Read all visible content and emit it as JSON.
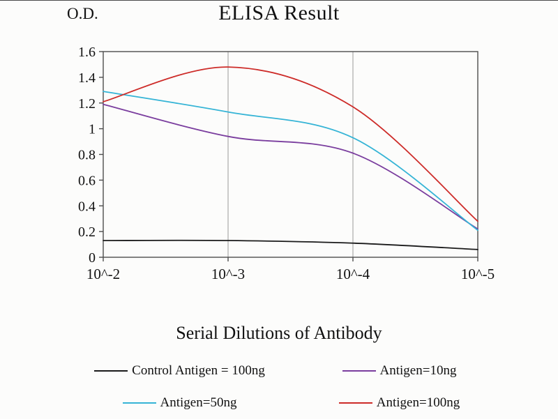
{
  "title": "ELISA Result",
  "chart_data": {
    "type": "line",
    "title": "ELISA Result",
    "ylabel": "O.D.",
    "xlabel": "Serial Dilutions of Antibody",
    "categories": [
      "10^-2",
      "10^-3",
      "10^-4",
      "10^-5"
    ],
    "y_ticks": [
      0,
      0.2,
      0.4,
      0.6,
      0.8,
      1,
      1.2,
      1.4,
      1.6
    ],
    "ylim": [
      0,
      1.6
    ],
    "grid": "vertical-only",
    "legend_position": "bottom",
    "line_style": "smooth",
    "series": [
      {
        "name": "Control Antigen = 100ng",
        "color": "#1a1a1a",
        "values": [
          0.13,
          0.13,
          0.11,
          0.06
        ]
      },
      {
        "name": "Antigen=10ng",
        "color": "#7a3d9e",
        "values": [
          1.19,
          0.94,
          0.81,
          0.22
        ]
      },
      {
        "name": "Antigen=50ng",
        "color": "#35b4d6",
        "values": [
          1.29,
          1.13,
          0.93,
          0.21
        ]
      },
      {
        "name": "Antigen=100ng",
        "color": "#cd2b28",
        "values": [
          1.21,
          1.48,
          1.17,
          0.28
        ]
      }
    ],
    "colors": {
      "axis": "#4d4d4d",
      "gridline": "#9a9a9a",
      "tick_label": "#111111"
    }
  }
}
